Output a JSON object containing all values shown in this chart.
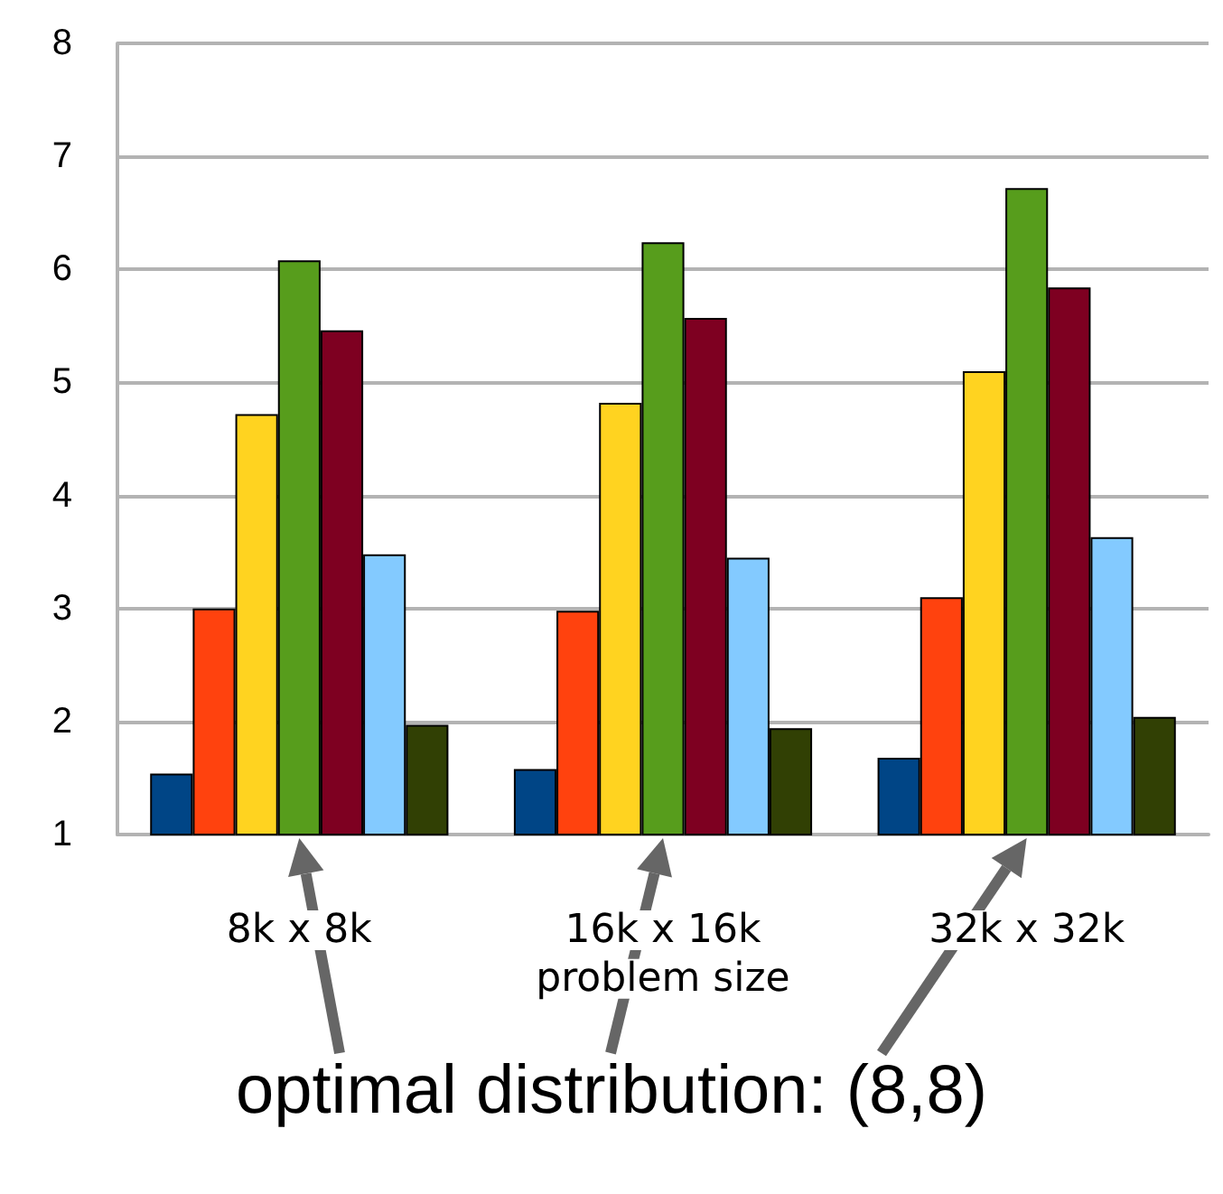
{
  "chart_data": {
    "type": "bar",
    "xlabel": "problem size",
    "categories": [
      "8k x 8k",
      "16k x 16k",
      "32k x 32k"
    ],
    "series": [
      {
        "color": "#004586",
        "values": [
          1.54,
          1.58,
          1.68
        ]
      },
      {
        "color": "#ff420e",
        "values": [
          3.0,
          2.98,
          3.1
        ]
      },
      {
        "color": "#ffd320",
        "values": [
          4.72,
          4.82,
          5.1
        ]
      },
      {
        "color": "#579d1c",
        "values": [
          6.08,
          6.24,
          6.72
        ]
      },
      {
        "color": "#7e0021",
        "values": [
          5.46,
          5.57,
          5.84
        ]
      },
      {
        "color": "#83caff",
        "values": [
          3.48,
          3.45,
          3.63
        ]
      },
      {
        "color": "#314004",
        "values": [
          1.97,
          1.94,
          2.04
        ]
      }
    ],
    "ylim": [
      1,
      8
    ],
    "yticks": [
      1,
      2,
      3,
      4,
      5,
      6,
      7,
      8
    ],
    "grid": "y",
    "annotations": [
      "optimal distribution: (8,8)"
    ]
  }
}
